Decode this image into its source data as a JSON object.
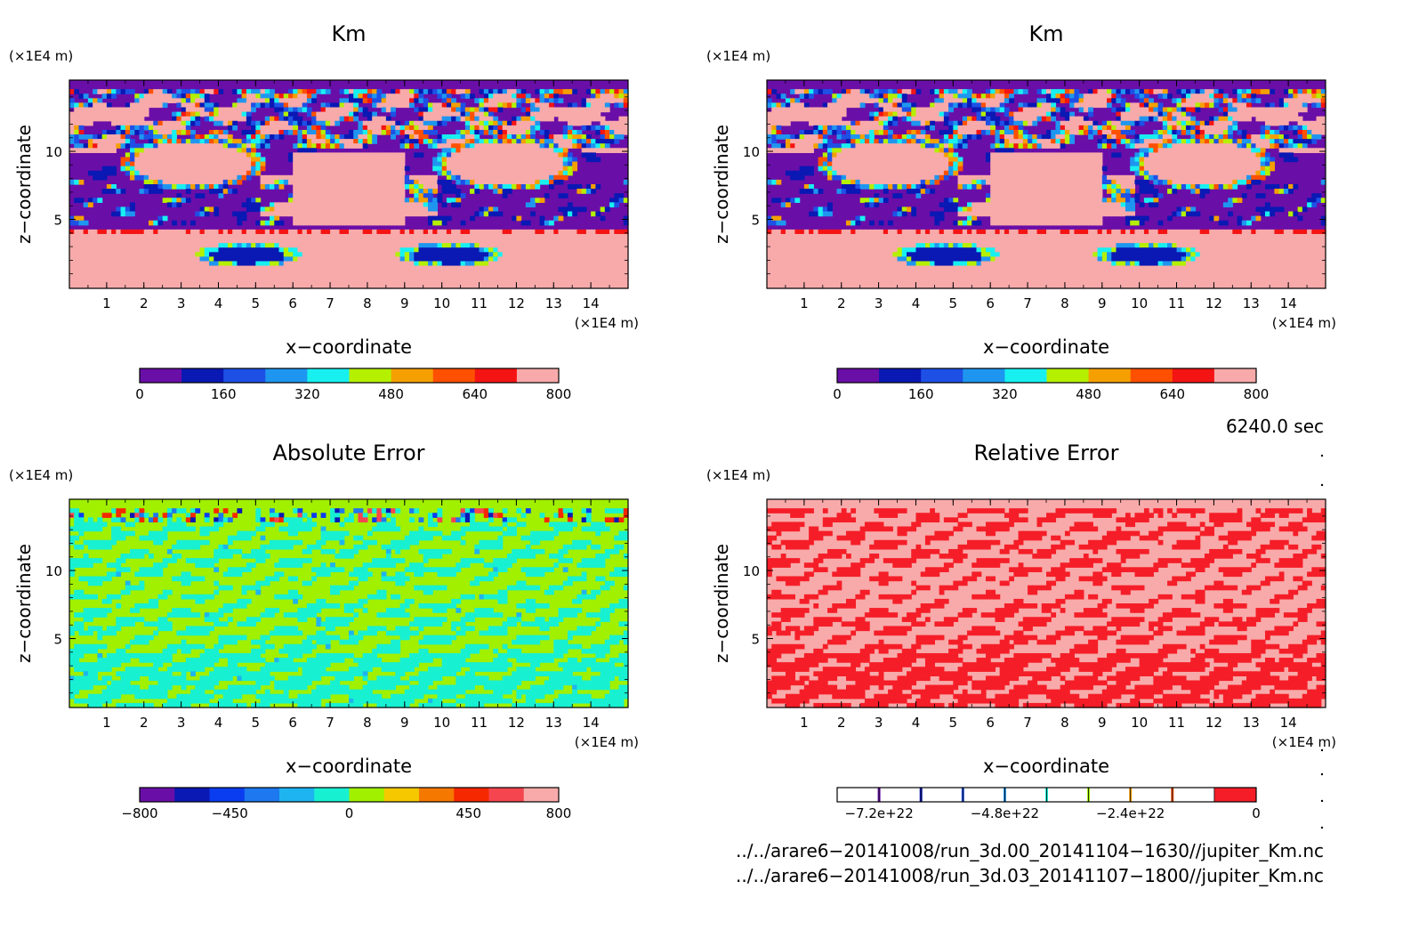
{
  "panels": [
    {
      "title": "Km",
      "ylabel": "z−coordinate",
      "xlabel": "x−coordinate",
      "unit_x": "(×1E4 m)",
      "unit_y": "(×1E4 m)",
      "colorbar_labels": [
        "0",
        "160",
        "320",
        "480",
        "640",
        "800"
      ],
      "colorbar_colors": [
        "#6a0ea8",
        "#0a18b4",
        "#1e50e6",
        "#1e96f0",
        "#18f0f0",
        "#b4f000",
        "#f5a000",
        "#ff5000",
        "#f51414",
        "#f8aaaa"
      ],
      "field": "km"
    },
    {
      "title": "Km",
      "ylabel": "z−coordinate",
      "xlabel": "x−coordinate",
      "unit_x": "(×1E4 m)",
      "unit_y": "(×1E4 m)",
      "colorbar_labels": [
        "0",
        "160",
        "320",
        "480",
        "640",
        "800"
      ],
      "colorbar_colors": [
        "#6a0ea8",
        "#0a18b4",
        "#1e50e6",
        "#1e96f0",
        "#18f0f0",
        "#b4f000",
        "#f5a000",
        "#ff5000",
        "#f51414",
        "#f8aaaa"
      ],
      "field": "km"
    },
    {
      "title": "Absolute Error",
      "ylabel": "z−coordinate",
      "xlabel": "x−coordinate",
      "unit_x": "(×1E4 m)",
      "unit_y": "(×1E4 m)",
      "colorbar_labels": [
        "−800",
        "−450",
        "0",
        "450",
        "800"
      ],
      "colorbar_colors": [
        "#6a0ea8",
        "#0a18b4",
        "#0a3cf0",
        "#1e78f0",
        "#1eb4f0",
        "#18f0d2",
        "#a0f000",
        "#f5c800",
        "#f57800",
        "#f52800",
        "#f54650",
        "#f8aaaa"
      ],
      "field": "abs"
    },
    {
      "title": "Relative Error",
      "ylabel": "z−coordinate",
      "xlabel": "x−coordinate",
      "unit_x": "(×1E4 m)",
      "unit_y": "(×1E4 m)",
      "colorbar_labels": [
        "−7.2e+22",
        "−4.8e+22",
        "−2.4e+22",
        "0"
      ],
      "colorbar_colors": [
        "#ffffff",
        "#f51e28"
      ],
      "field": "rel"
    }
  ],
  "time_label": "6240.0 sec",
  "file_paths": [
    "../../arare6−20141008/run_3d.00_20141104−1630//jupiter_Km.nc",
    "../../arare6−20141008/run_3d.03_20141107−1800//jupiter_Km.nc"
  ],
  "x_ticks": [
    "1",
    "2",
    "3",
    "4",
    "5",
    "6",
    "7",
    "8",
    "9",
    "10",
    "11",
    "12",
    "13",
    "14"
  ],
  "y_ticks": [
    "5",
    "10"
  ],
  "chart_data": [
    {
      "type": "heatmap",
      "title": "Km",
      "xlabel": "x−coordinate",
      "ylabel": "z−coordinate",
      "xlim": [
        0,
        15
      ],
      "ylim": [
        0,
        15
      ],
      "color_levels": [
        0,
        800
      ]
    },
    {
      "type": "heatmap",
      "title": "Km",
      "xlabel": "x−coordinate",
      "ylabel": "z−coordinate",
      "xlim": [
        0,
        15
      ],
      "ylim": [
        0,
        15
      ],
      "color_levels": [
        0,
        800
      ]
    },
    {
      "type": "heatmap",
      "title": "Absolute Error",
      "xlabel": "x−coordinate",
      "ylabel": "z−coordinate",
      "xlim": [
        0,
        15
      ],
      "ylim": [
        0,
        15
      ],
      "color_levels": [
        -800,
        800
      ]
    },
    {
      "type": "heatmap",
      "title": "Relative Error",
      "xlabel": "x−coordinate",
      "ylabel": "z−coordinate",
      "xlim": [
        0,
        15
      ],
      "ylim": [
        0,
        15
      ],
      "color_levels": [
        -8e+22,
        0
      ]
    }
  ]
}
